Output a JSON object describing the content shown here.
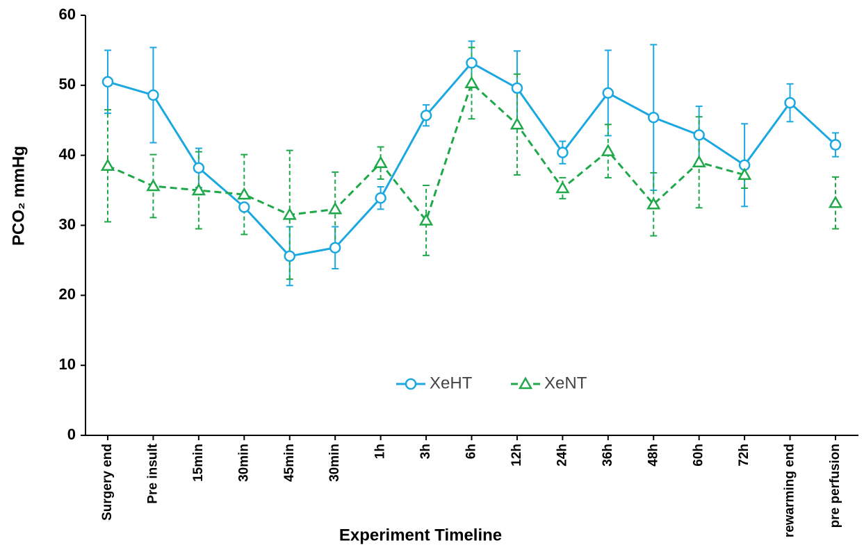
{
  "chart_data": {
    "type": "line",
    "x_label": "Experiment  Timeline",
    "y_label": "PCO₂ mmHg",
    "categories": [
      "Surgery end",
      "Pre insult",
      "15min",
      "30min",
      "45min",
      "30min",
      "1h",
      "3h",
      "6h",
      "12h",
      "24h",
      "36h",
      "48h",
      "60h",
      "72h",
      "rewarming end",
      "pre perfusion"
    ],
    "ylim": [
      0,
      60
    ],
    "yticks": [
      0,
      10,
      20,
      30,
      40,
      50,
      60
    ],
    "legend": "bottom-center",
    "series": [
      {
        "name": "XeHT",
        "color": "#1ba8e0",
        "marker": "circle",
        "dash": false,
        "values": [
          50.5,
          48.6,
          38.2,
          32.6,
          25.6,
          26.8,
          33.9,
          45.7,
          53.2,
          49.6,
          40.4,
          48.9,
          45.4,
          42.9,
          38.6,
          47.5,
          41.5
        ],
        "errors": [
          4.5,
          6.8,
          2.8,
          0.5,
          4.2,
          3.0,
          1.6,
          1.5,
          3.1,
          5.3,
          1.6,
          6.1,
          10.4,
          4.1,
          5.9,
          2.7,
          1.7
        ]
      },
      {
        "name": "XeNT",
        "color": "#1fa84a",
        "marker": "triangle",
        "dash": true,
        "values": [
          38.5,
          35.6,
          35.0,
          34.4,
          31.5,
          32.3,
          38.9,
          30.7,
          50.3,
          44.4,
          35.3,
          40.6,
          33.0,
          39.0,
          37.2,
          null,
          33.2
        ],
        "errors": [
          8.0,
          4.5,
          5.5,
          5.7,
          9.2,
          5.3,
          2.3,
          5.0,
          5.1,
          7.2,
          1.5,
          3.8,
          4.5,
          6.5,
          1.9,
          null,
          3.7
        ]
      }
    ]
  }
}
